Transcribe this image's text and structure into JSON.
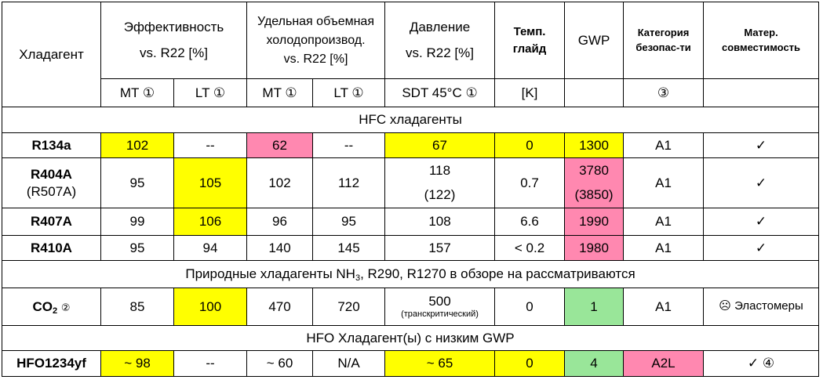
{
  "headers": {
    "refrigerant": "Хладагент",
    "efficiency_line1": "Эффективность",
    "efficiency_line2": "vs. R22 [%]",
    "capacity_line1": "Удельная объемная",
    "capacity_line2": "холодопроизвод.",
    "capacity_line3": "vs. R22 [%]",
    "pressure_line1": "Давление",
    "pressure_line2": "vs. R22 [%]",
    "glide_line1": "Темп.",
    "glide_line2": "глайд",
    "gwp": "GWP",
    "safety_line1": "Категория",
    "safety_line2": "безопас-ти",
    "compat_line1": "Матер.",
    "compat_line2": "совместимость",
    "sub_mt1": "MT ①",
    "sub_lt1": "LT ①",
    "sub_mt2": "MT ①",
    "sub_lt2": "LT ①",
    "sub_sdt": "SDT 45°C ①",
    "sub_k": "[K]",
    "sub_3": "③"
  },
  "sections": {
    "hfc": "HFC хладагенты",
    "natural": "Природные хладагенты NH",
    "natural_sub": "3",
    "natural_rest": ", R290, R1270 в обзоре на рассматриваются",
    "hfo": "HFO Хладагент(ы) с низким GWP"
  },
  "rows": {
    "r134a": {
      "name": "R134a",
      "mt": "102",
      "lt": "--",
      "cap_mt": "62",
      "cap_lt": "--",
      "pressure": "67",
      "glide": "0",
      "gwp": "1300",
      "safety": "A1",
      "compat": "✓"
    },
    "r404a": {
      "name": "R404A",
      "sub": "(R507A)",
      "mt": "95",
      "lt": "105",
      "cap_mt": "102",
      "cap_lt": "112",
      "pressure": "118",
      "pressure_sub": "(122)",
      "glide": "0.7",
      "gwp": "3780",
      "gwp_sub": "(3850)",
      "safety": "A1",
      "compat": "✓"
    },
    "r407a": {
      "name": "R407A",
      "mt": "99",
      "lt": "106",
      "cap_mt": "96",
      "cap_lt": "95",
      "pressure": "108",
      "glide": "6.6",
      "gwp": "1990",
      "safety": "A1",
      "compat": "✓"
    },
    "r410a": {
      "name": "R410A",
      "mt": "95",
      "lt": "94",
      "cap_mt": "140",
      "cap_lt": "145",
      "pressure": "157",
      "glide": "< 0.2",
      "gwp": "1980",
      "safety": "A1",
      "compat": "✓"
    },
    "co2": {
      "name": "CO",
      "name_sub": "2",
      "note": "②",
      "mt": "85",
      "lt": "100",
      "cap_mt": "470",
      "cap_lt": "720",
      "pressure": "500",
      "pressure_sub": "(транскритический)",
      "glide": "0",
      "gwp": "1",
      "safety": "A1",
      "compat_icon": "☹",
      "compat": "Эластомеры"
    },
    "hfo": {
      "name": "HFO1234yf",
      "mt": "~ 98",
      "lt": "--",
      "cap_mt": "~ 60",
      "cap_lt": "N/A",
      "pressure": "~ 65",
      "glide": "0",
      "gwp": "4",
      "safety": "A2L",
      "compat": "✓ ④"
    }
  },
  "colors": {
    "yellow": "#ffff00",
    "pink": "#ff88b0",
    "green": "#99e699"
  }
}
